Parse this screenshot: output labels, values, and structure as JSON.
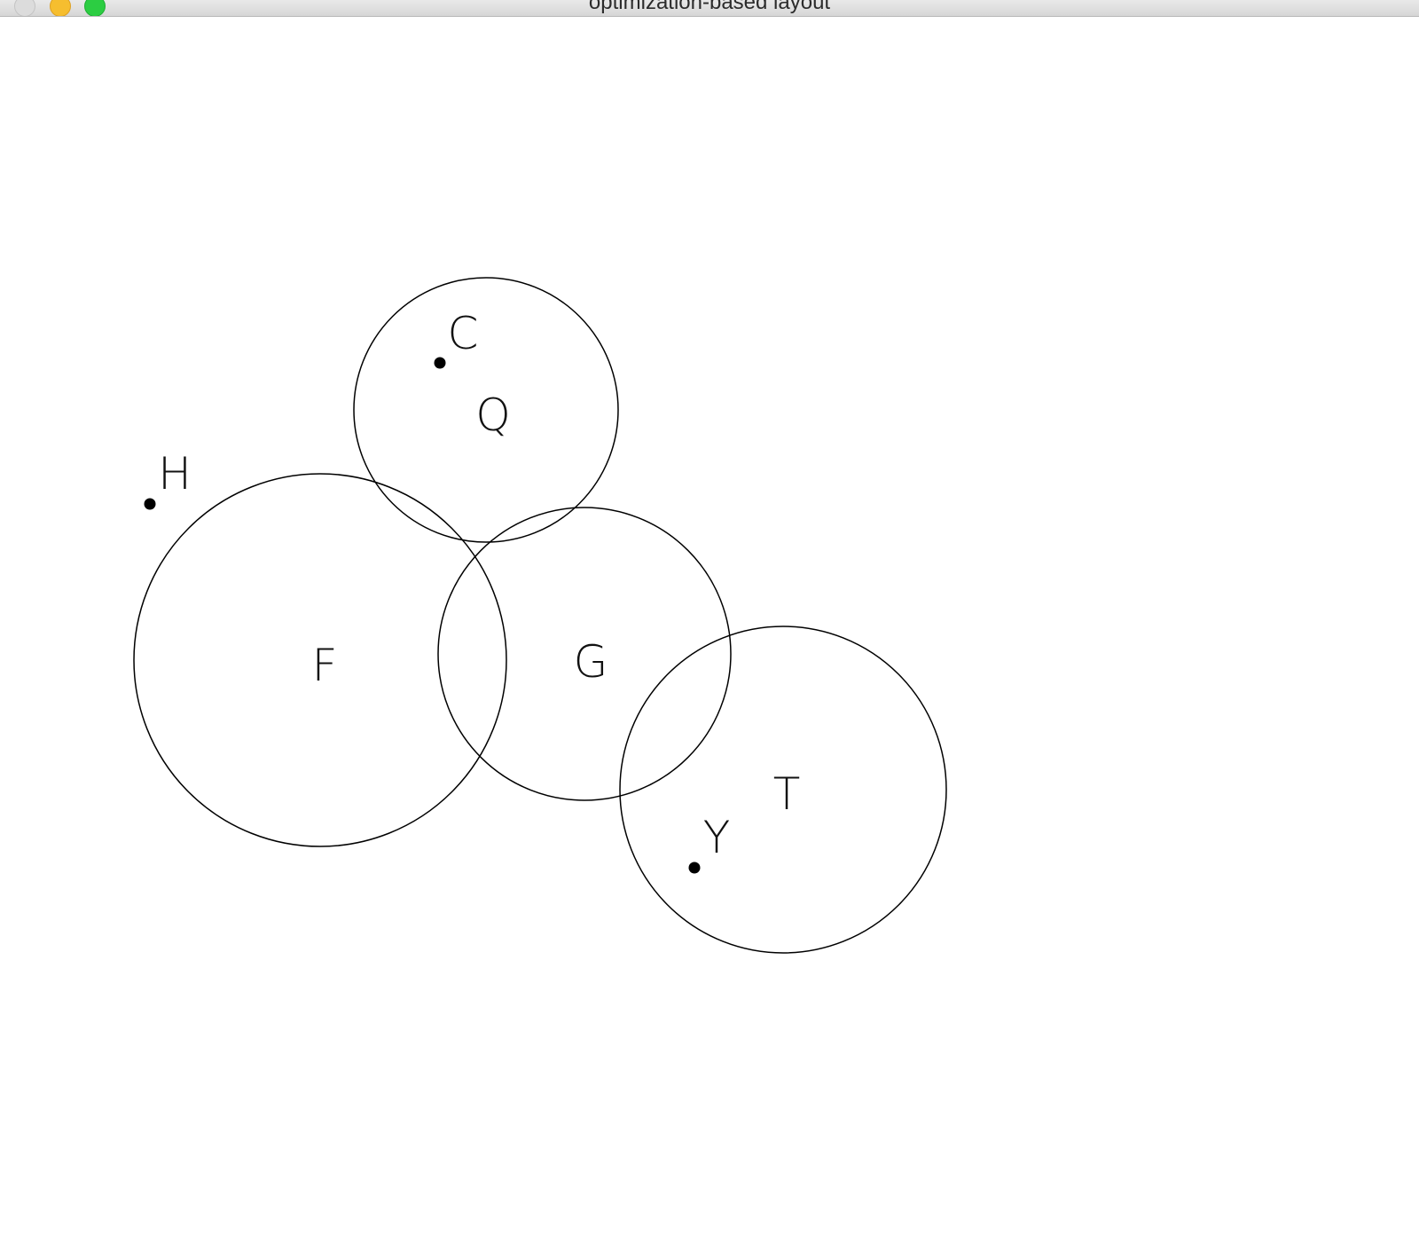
{
  "window": {
    "title": "optimization-based layout",
    "colors": {
      "close": "#dcdcdc",
      "minimize": "#f6be2f",
      "zoom": "#2ccd42"
    }
  },
  "canvas": {
    "circles": [
      {
        "label": "Q"
      },
      {
        "label": "F"
      },
      {
        "label": "G"
      },
      {
        "label": "T"
      }
    ],
    "points": [
      {
        "label": "C"
      },
      {
        "label": "H"
      },
      {
        "label": "Y"
      }
    ],
    "stroke_color": "#000000"
  }
}
